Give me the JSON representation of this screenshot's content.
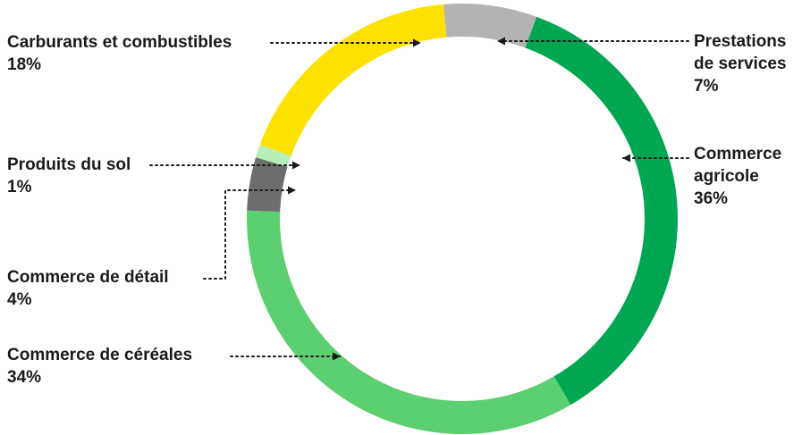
{
  "chart_data": {
    "type": "pie",
    "style": "donut",
    "title": "",
    "slices": [
      {
        "label": "Prestations de services",
        "name_lines": [
          "Prestations",
          "de services"
        ],
        "value": 7,
        "display": "7%",
        "color": "#b3b3b3"
      },
      {
        "label": "Commerce agricole",
        "name_lines": [
          "Commerce",
          "agricole"
        ],
        "value": 36,
        "display": "36%",
        "color": "#00a651"
      },
      {
        "label": "Commerce de céréales",
        "name_lines": [
          "Commerce de céréales"
        ],
        "value": 34,
        "display": "34%",
        "color": "#5ccf70"
      },
      {
        "label": "Commerce de détail",
        "name_lines": [
          "Commerce de détail"
        ],
        "value": 4,
        "display": "4%",
        "color": "#6d6d6d"
      },
      {
        "label": "Produits du sol",
        "name_lines": [
          "Produits du sol"
        ],
        "value": 1,
        "display": "1%",
        "color": "#b8efb8"
      },
      {
        "label": "Carburants et combustibles",
        "name_lines": [
          "Carburants et combustibles"
        ],
        "value": 18,
        "display": "18%",
        "color": "#fde100"
      }
    ],
    "legend": "none",
    "label_placement": "outside with dotted arrow leaders"
  }
}
